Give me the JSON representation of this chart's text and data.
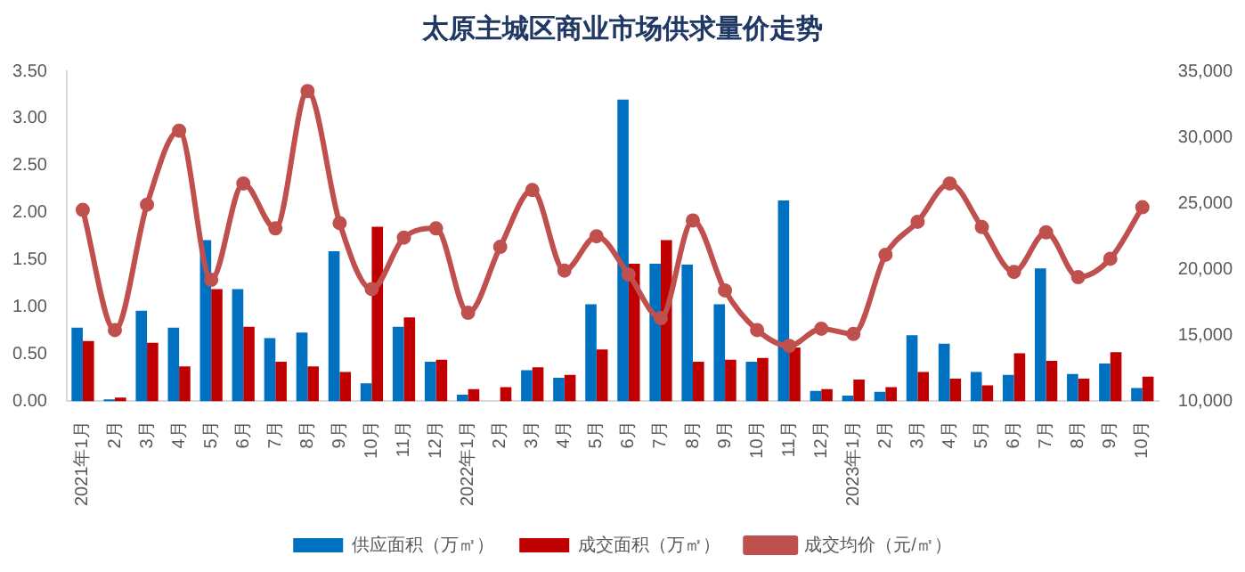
{
  "chart_data": {
    "type": "bar",
    "title": "太原主城区商业市场供求量价走势",
    "categories": [
      "2021年1月",
      "2月",
      "3月",
      "4月",
      "5月",
      "6月",
      "7月",
      "8月",
      "9月",
      "10月",
      "11月",
      "12月",
      "2022年1月",
      "2月",
      "3月",
      "4月",
      "5月",
      "6月",
      "7月",
      "8月",
      "9月",
      "10月",
      "11月",
      "12月",
      "2023年1月",
      "2月",
      "3月",
      "4月",
      "5月",
      "6月",
      "7月",
      "8月",
      "9月",
      "10月"
    ],
    "series": [
      {
        "name": "供应面积（万㎡）",
        "color": "#0070c0",
        "values": [
          0.78,
          0.02,
          0.96,
          0.78,
          1.71,
          1.19,
          0.67,
          0.73,
          1.59,
          0.19,
          0.79,
          0.42,
          0.07,
          0,
          0.33,
          0.25,
          1.03,
          3.2,
          1.46,
          1.45,
          1.03,
          0.42,
          2.13,
          0.11,
          0.06,
          0.1,
          0.7,
          0.61,
          0.31,
          0.28,
          1.41,
          0.29,
          0.4,
          0.14
        ]
      },
      {
        "name": "成交面积（万㎡）",
        "color": "#c00000",
        "values": [
          0.64,
          0.04,
          0.62,
          0.37,
          1.19,
          0.79,
          0.42,
          0.37,
          0.31,
          1.85,
          0.89,
          0.44,
          0.13,
          0.15,
          0.36,
          0.28,
          0.55,
          1.46,
          1.71,
          0.42,
          0.44,
          0.46,
          0.57,
          0.13,
          0.23,
          0.15,
          0.31,
          0.24,
          0.17,
          0.51,
          0.43,
          0.24,
          0.52,
          0.26
        ]
      },
      {
        "name": "成交均价（元/㎡）",
        "type": "line",
        "axis": "y2",
        "color": "#c0504d",
        "values": [
          24500,
          15400,
          24900,
          30500,
          19200,
          26500,
          23100,
          33500,
          23500,
          18500,
          22400,
          23100,
          16700,
          21700,
          26000,
          19900,
          22500,
          19600,
          16300,
          23700,
          18400,
          15400,
          14200,
          15500,
          15100,
          21100,
          23600,
          26500,
          23200,
          19800,
          22800,
          19400,
          20800,
          24700
        ]
      }
    ],
    "ylim": [
      0,
      3.5
    ],
    "yticks": [
      {
        "value": 0,
        "label": "0.00"
      },
      {
        "value": 0.5,
        "label": "0.50"
      },
      {
        "value": 1,
        "label": "1.00"
      },
      {
        "value": 1.5,
        "label": "1.50"
      },
      {
        "value": 2,
        "label": "2.00"
      },
      {
        "value": 2.5,
        "label": "2.50"
      },
      {
        "value": 3,
        "label": "3.00"
      },
      {
        "value": 3.5,
        "label": "3.50"
      }
    ],
    "y2lim": [
      10000,
      35000
    ],
    "y2ticks": [
      {
        "value": 10000,
        "label": "10,000"
      },
      {
        "value": 15000,
        "label": "15,000"
      },
      {
        "value": 20000,
        "label": "20,000"
      },
      {
        "value": 25000,
        "label": "25,000"
      },
      {
        "value": 30000,
        "label": "30,000"
      },
      {
        "value": 35000,
        "label": "35,000"
      }
    ],
    "marker": "circle",
    "grid": false,
    "legend": "bottom"
  }
}
